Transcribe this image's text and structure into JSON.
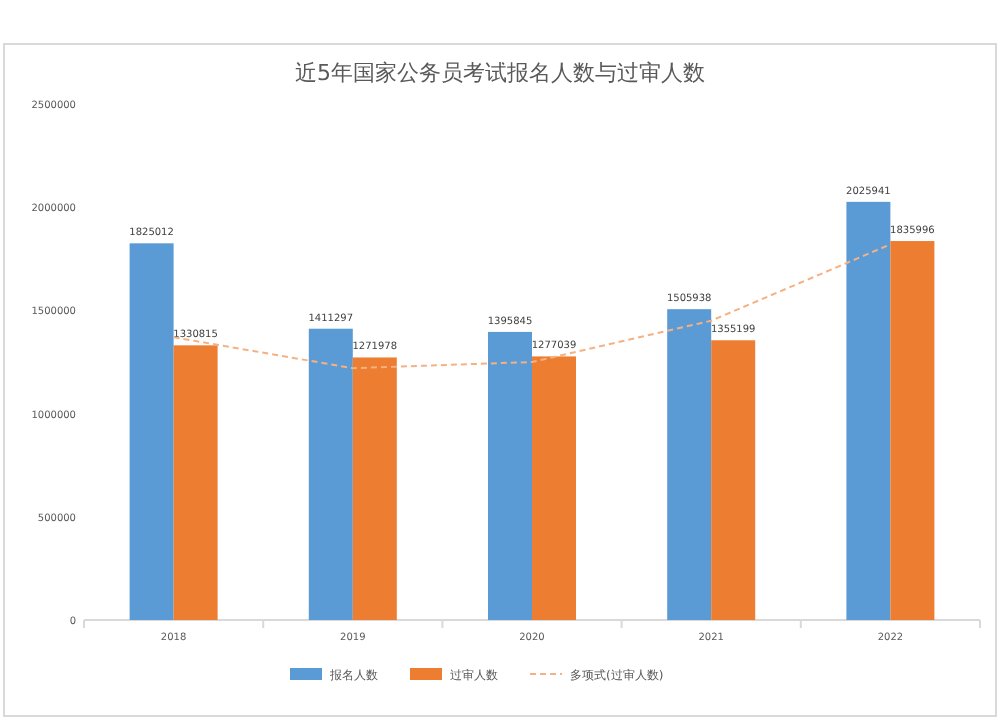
{
  "chart_data": {
    "type": "bar",
    "title": "近5年国家公务员考试报名人数与过审人数",
    "categories": [
      "2018",
      "2019",
      "2020",
      "2021",
      "2022"
    ],
    "ylim": [
      0,
      2500000
    ],
    "yticks": [
      0,
      500000,
      1000000,
      1500000,
      2000000,
      2500000
    ],
    "series": [
      {
        "name": "报名人数",
        "color": "#5b9bd5",
        "values": [
          1825012,
          1411297,
          1395845,
          1505938,
          2025941
        ],
        "value_labels": [
          "1825012",
          "1411297",
          "1395845",
          "1505938",
          "2025941"
        ]
      },
      {
        "name": "过审人数",
        "color": "#ed7d31",
        "values": [
          1330815,
          1271978,
          1277039,
          1355199,
          1835996
        ],
        "value_labels": [
          "1330815",
          "1271978",
          "1277039",
          "1355199",
          "1835996"
        ]
      },
      {
        "name": "多项式(过审人数)",
        "type": "line",
        "line_style": "dashed",
        "color": "#f4b183",
        "values": [
          1370000,
          1220000,
          1250000,
          1450000,
          1820000
        ]
      }
    ],
    "legend": "bottom"
  }
}
